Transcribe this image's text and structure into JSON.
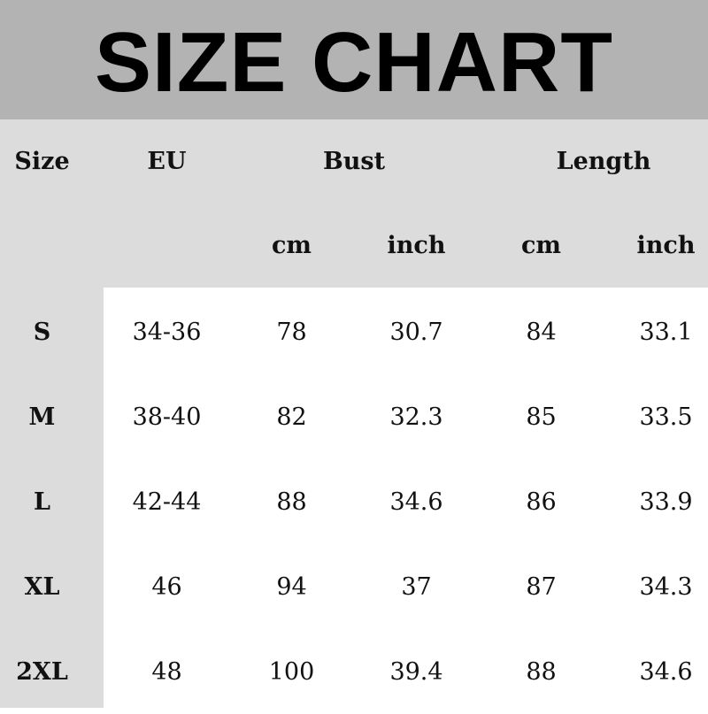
{
  "title": "SIZE CHART",
  "headers": {
    "size": "Size",
    "eu": "EU",
    "bust": "Bust",
    "length": "Length",
    "bust_cm": "cm",
    "bust_inch": "inch",
    "length_cm": "cm",
    "length_inch": "inch"
  },
  "rows": [
    {
      "size": "S",
      "eu": "34-36",
      "bust_cm": "78",
      "bust_inch": "30.7",
      "length_cm": "84",
      "length_inch": "33.1"
    },
    {
      "size": "M",
      "eu": "38-40",
      "bust_cm": "82",
      "bust_inch": "32.3",
      "length_cm": "85",
      "length_inch": "33.5"
    },
    {
      "size": "L",
      "eu": "42-44",
      "bust_cm": "88",
      "bust_inch": "34.6",
      "length_cm": "86",
      "length_inch": "33.9"
    },
    {
      "size": "XL",
      "eu": "46",
      "bust_cm": "94",
      "bust_inch": "37",
      "length_cm": "87",
      "length_inch": "34.3"
    },
    {
      "size": "2XL",
      "eu": "48",
      "bust_cm": "100",
      "bust_inch": "39.4",
      "length_cm": "88",
      "length_inch": "34.6"
    }
  ],
  "colors": {
    "title_band": "#b3b3b3",
    "header_band": "#dcdcdc",
    "body": "#ffffff"
  }
}
